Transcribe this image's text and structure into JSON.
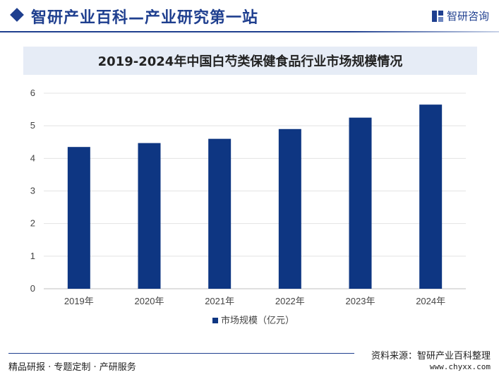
{
  "header": {
    "site_title": "智研产业百科—产业研究第一站",
    "logo_text": "智研咨询"
  },
  "chart_data": {
    "type": "bar",
    "title": "2019-2024年中国白芍类保健食品行业市场规模情况",
    "categories": [
      "2019年",
      "2020年",
      "2021年",
      "2022年",
      "2023年",
      "2024年"
    ],
    "series": [
      {
        "name": "市场规模（亿元）",
        "values": [
          4.35,
          4.47,
          4.6,
          4.9,
          5.25,
          5.65
        ]
      }
    ],
    "ylim": [
      0,
      6
    ],
    "yticks": [
      "0",
      "1",
      "2",
      "3",
      "4",
      "5",
      "6"
    ],
    "grid": true,
    "legend_position": "bottom-center",
    "bar_color": "#0e3682"
  },
  "footer": {
    "tagline": "精品研报 · 专题定制 · 产研服务",
    "source": "资料来源：智研产业百科整理",
    "url": "www.chyxx.com"
  }
}
